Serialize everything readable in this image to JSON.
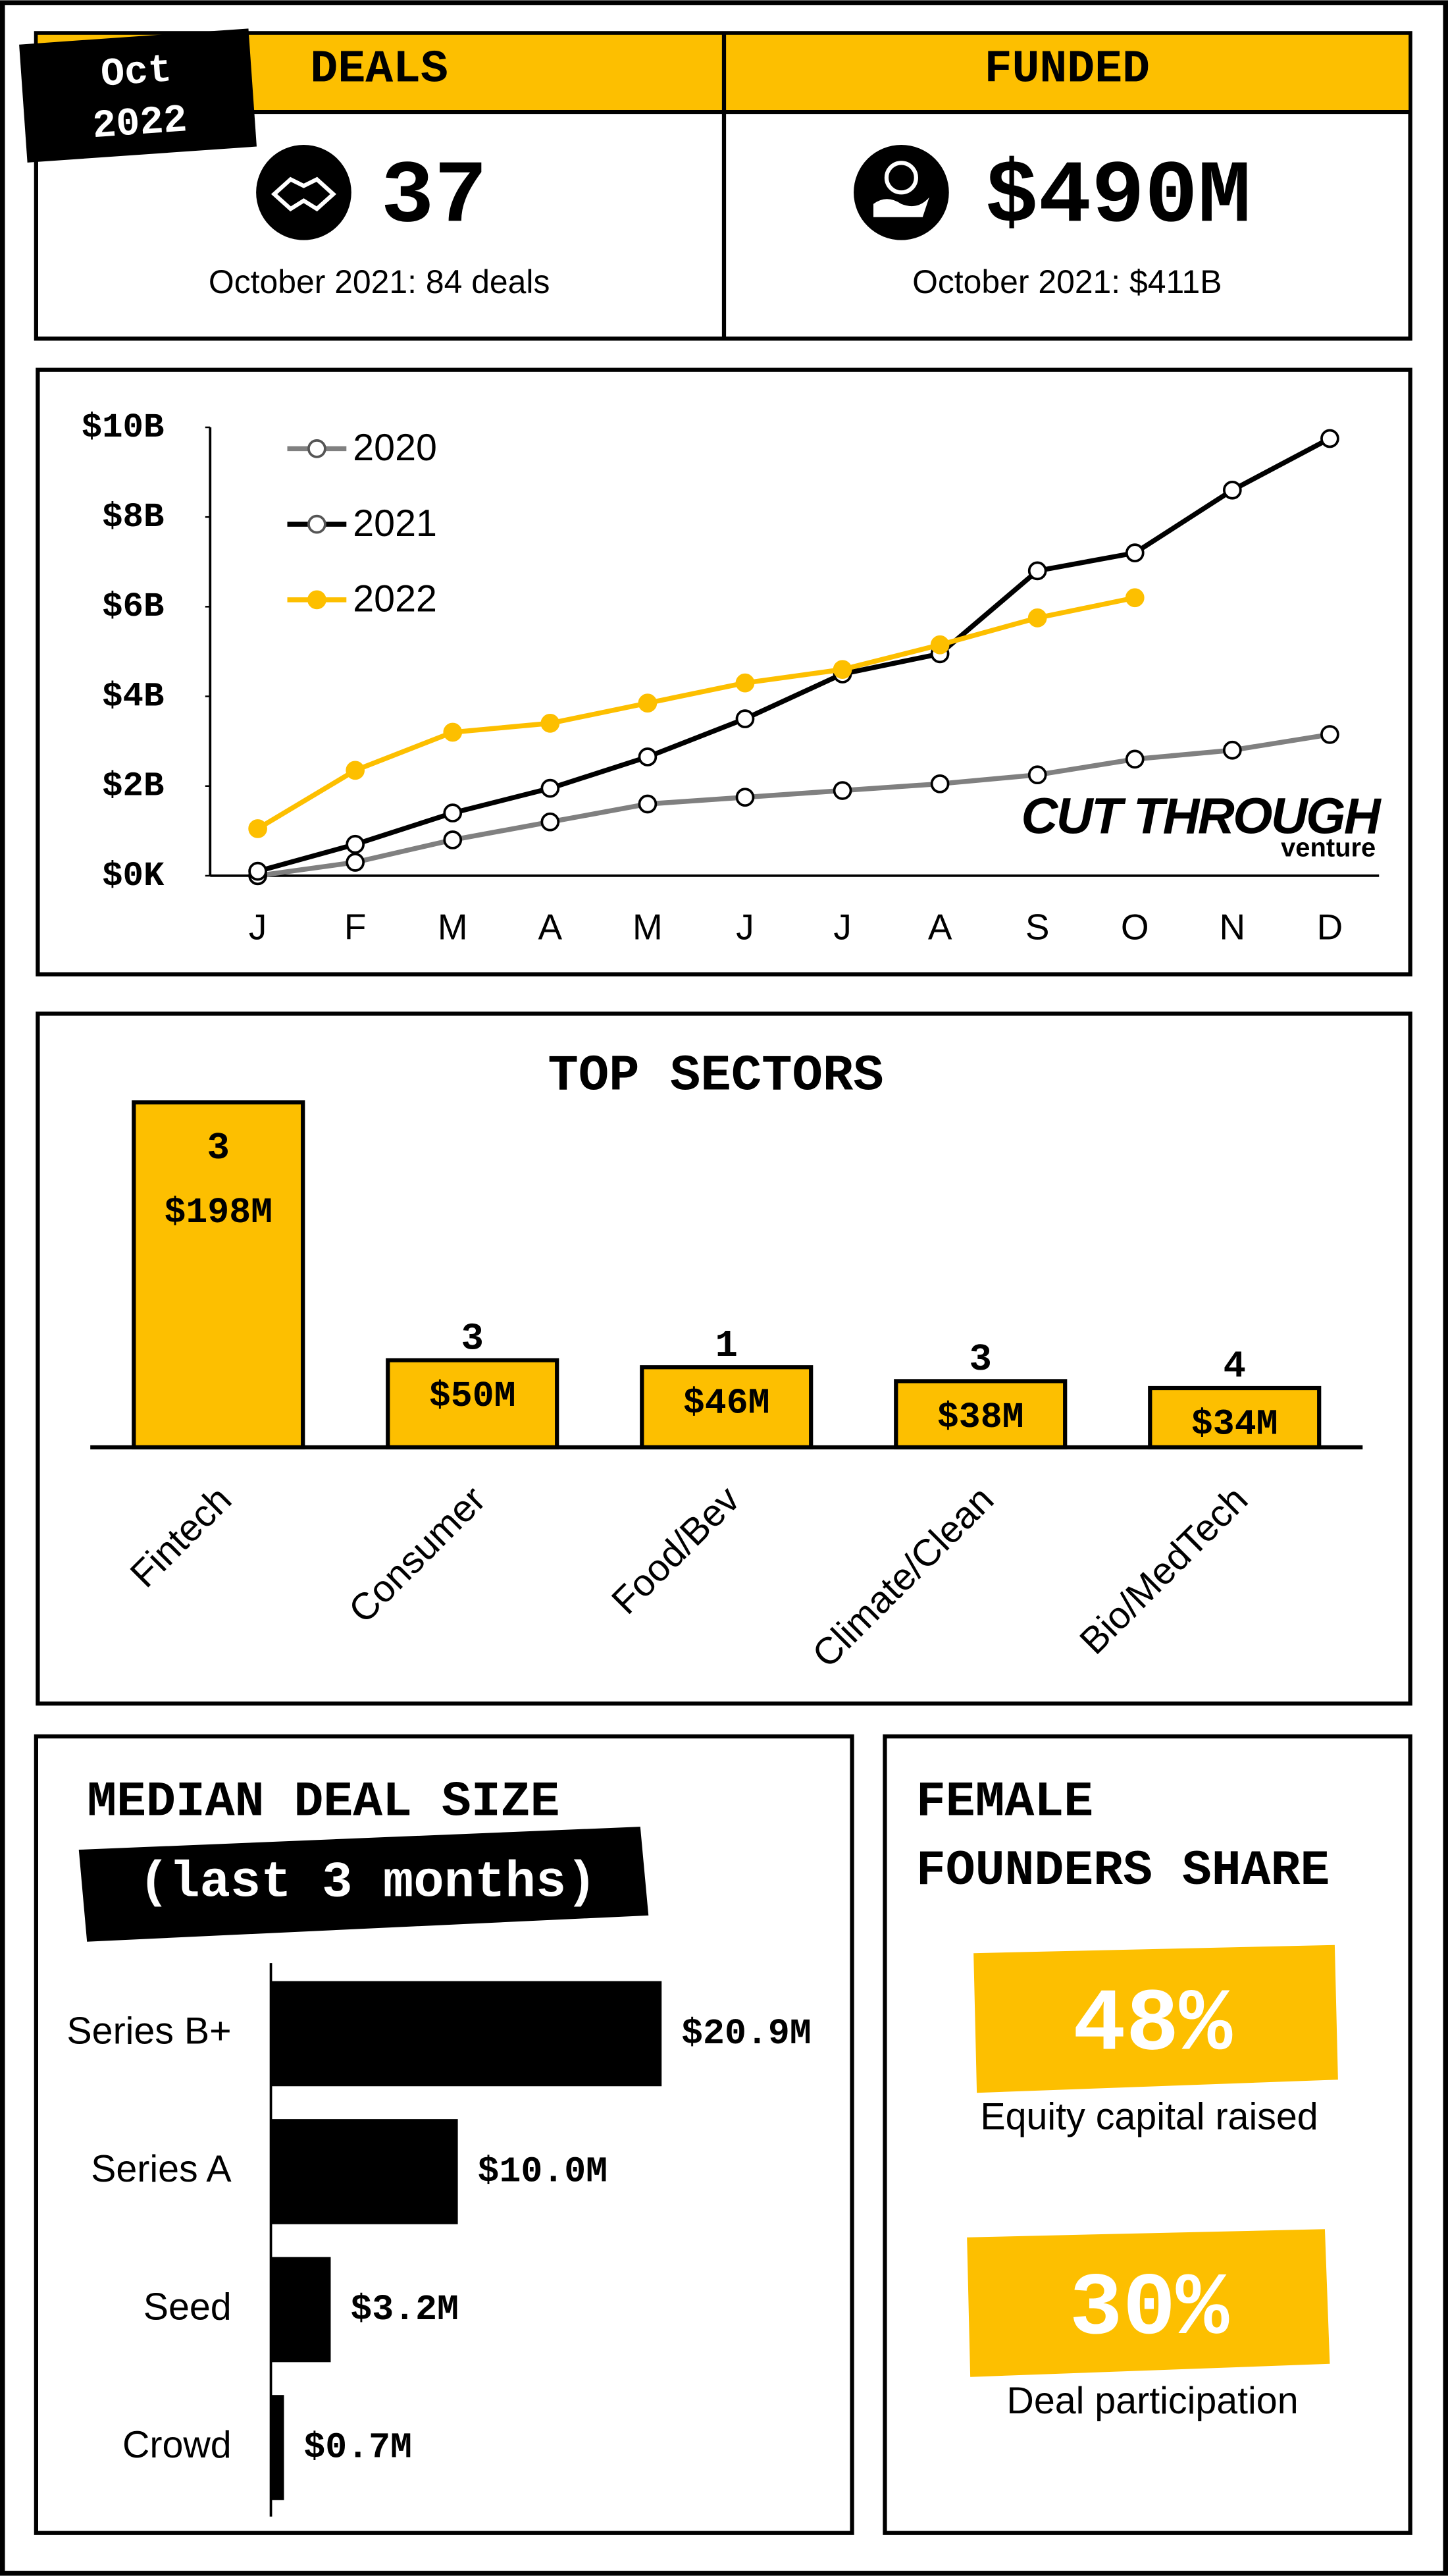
{
  "header": {
    "badge": [
      "Oct",
      "2022"
    ],
    "kpis": [
      {
        "label": "DEALS",
        "value": "37",
        "comparison": "October 2021: 84 deals"
      },
      {
        "label": "FUNDED",
        "value": "$490M",
        "comparison": "October 2021: $411B"
      }
    ]
  },
  "chart_data": [
    {
      "type": "line",
      "categories": [
        "J",
        "F",
        "M",
        "A",
        "M",
        "J",
        "J",
        "A",
        "S",
        "O",
        "N",
        "D"
      ],
      "series": [
        {
          "name": "2020",
          "color": "#808080",
          "values": [
            0,
            0.3,
            0.8,
            1.2,
            1.6,
            1.75,
            1.9,
            2.05,
            2.25,
            2.6,
            2.8,
            3.15
          ]
        },
        {
          "name": "2021",
          "color": "#000000",
          "values": [
            0.1,
            0.7,
            1.4,
            1.95,
            2.65,
            3.5,
            4.5,
            4.95,
            6.8,
            7.2,
            8.6,
            9.75
          ]
        },
        {
          "name": "2022",
          "color": "#fdbf00",
          "values": [
            1.05,
            2.35,
            3.2,
            3.4,
            3.85,
            4.3,
            4.6,
            5.15,
            5.75,
            6.2,
            null,
            null
          ]
        }
      ],
      "ylim": [
        0,
        10
      ],
      "yticks": [
        {
          "value": 0,
          "label": "$0K"
        },
        {
          "value": 2,
          "label": "$2B"
        },
        {
          "value": 4,
          "label": "$4B"
        },
        {
          "value": 6,
          "label": "$6B"
        },
        {
          "value": 8,
          "label": "$8B"
        },
        {
          "value": 10,
          "label": "$10B"
        }
      ],
      "legend": "top-left"
    },
    {
      "type": "bar",
      "title": "TOP SECTORS",
      "categories": [
        "Fintech",
        "Consumer",
        "Food/Bev",
        "Climate/Clean",
        "Bio/MedTech"
      ],
      "values": [
        198,
        50,
        46,
        38,
        34
      ],
      "value_labels": [
        "$198M",
        "$50M",
        "$46M",
        "$38M",
        "$34M"
      ],
      "counts": [
        3,
        3,
        1,
        3,
        4
      ],
      "color": "#fdbf00"
    },
    {
      "type": "barh",
      "title": "MEDIAN DEAL SIZE",
      "subtitle": "(last 3 months)",
      "categories": [
        "Series B+",
        "Series A",
        "Seed",
        "Crowd"
      ],
      "values": [
        20.9,
        10.0,
        3.2,
        0.7
      ],
      "value_labels": [
        "$20.9M",
        "$10.0M",
        "$3.2M",
        "$0.7M"
      ],
      "color": "#000000"
    }
  ],
  "female_founders": {
    "title_lines": [
      "FEMALE",
      "FOUNDERS SHARE"
    ],
    "stats": [
      {
        "value": "48%",
        "label": "Equity capital raised"
      },
      {
        "value": "30%",
        "label": "Deal participation"
      }
    ]
  },
  "logo": {
    "name": "CUT THROUGH",
    "tagline": "venture"
  }
}
